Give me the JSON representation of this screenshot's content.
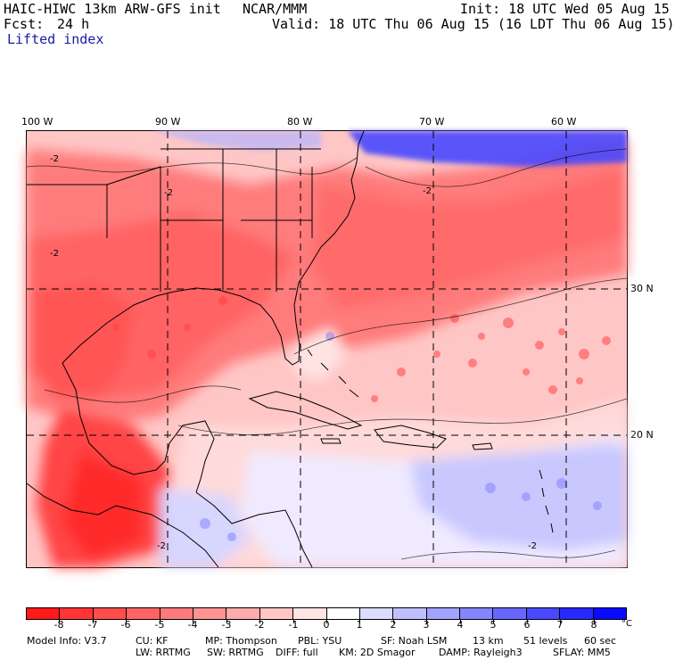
{
  "header": {
    "model": "HAIC-HIWC 13km ARW-GFS init",
    "org": "NCAR/MMM",
    "init": "Init: 18 UTC Wed 05 Aug 15",
    "fcst_label": "Fcst:",
    "fcst_value": "24 h",
    "valid": "Valid: 18 UTC Thu 06 Aug 15 (16 LDT Thu 06 Aug 15)",
    "field": "Lifted index"
  },
  "map": {
    "lon_labels": [
      "100 W",
      "90 W",
      "80 W",
      "70 W",
      "60 W"
    ],
    "lat_labels": [
      "30 N",
      "20 N"
    ],
    "contour_labels": [
      "-2",
      "-2",
      "-2",
      "-2",
      "-2",
      "-2"
    ]
  },
  "colorbar": {
    "ticks": [
      "-8",
      "-7",
      "-6",
      "-5",
      "-4",
      "-3",
      "-2",
      "-1",
      "0",
      "1",
      "2",
      "3",
      "4",
      "5",
      "6",
      "7",
      "8"
    ],
    "unit": "°C",
    "colors": [
      "#ff1a1a",
      "#ff3434",
      "#ff4d4d",
      "#ff6464",
      "#ff7b7b",
      "#ff9393",
      "#ffabab",
      "#ffc6c6",
      "#ffe4e4",
      "#ffffff",
      "#dcdcff",
      "#bfbfff",
      "#a2a2ff",
      "#8585ff",
      "#6767ff",
      "#4949ff",
      "#2929ff",
      "#0a0aff"
    ]
  },
  "footer": {
    "line1": [
      "Model Info: V3.7",
      "CU: KF",
      "MP: Thompson",
      "PBL: YSU",
      "SF: Noah LSM",
      "13 km",
      "51 levels",
      "60 sec"
    ],
    "line2": [
      "LW: RRTMG",
      "SW: RRTMG",
      "DIFF: full",
      "KM: 2D Smagor",
      "DAMP: Rayleigh3",
      "SFLAY: MM5"
    ]
  }
}
